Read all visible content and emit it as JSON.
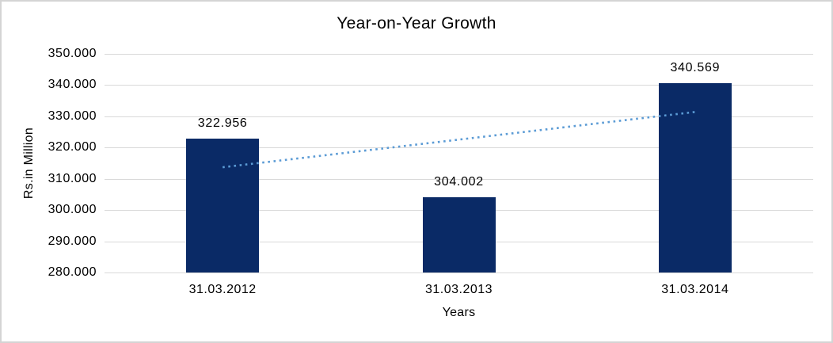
{
  "chart": {
    "title": "Year-on-Year Growth",
    "y_axis_title": "Rs.in Million",
    "x_axis_title": "Years"
  },
  "chart_data": {
    "type": "bar",
    "title": "Year-on-Year Growth",
    "xlabel": "Years",
    "ylabel": "Rs.in Million",
    "categories": [
      "31.03.2012",
      "31.03.2013",
      "31.03.2014"
    ],
    "values": [
      322.956,
      304.002,
      340.569
    ],
    "value_labels": [
      "322.956",
      "304.002",
      "340.569"
    ],
    "ylim": [
      280,
      350
    ],
    "ytick_step": 10,
    "ytick_labels": [
      "280.000",
      "290.000",
      "300.000",
      "310.000",
      "320.000",
      "330.000",
      "340.000",
      "350.000"
    ],
    "grid": true,
    "legend": "none",
    "bar_color": "#0a2a66",
    "gridline_color": "#d9d9d9",
    "frame_border_color": "#d4d4d4",
    "text_color": "#000000",
    "trendline": {
      "type": "linear",
      "style": "dotted",
      "color": "#5b9bd5",
      "start_value": 313.7,
      "end_value": 331.4
    }
  }
}
